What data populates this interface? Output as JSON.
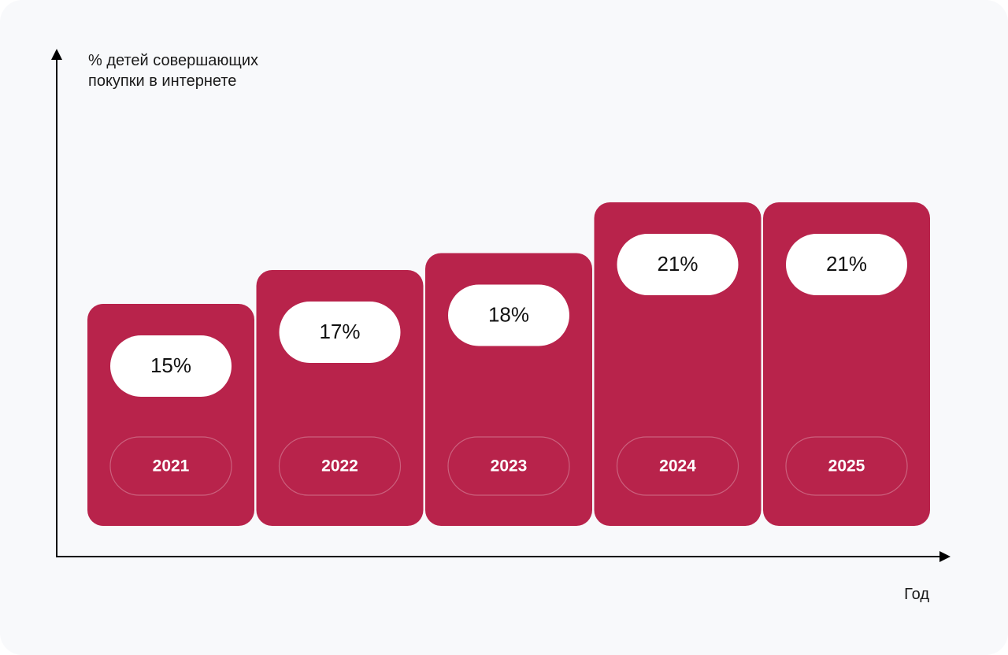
{
  "chart_data": {
    "type": "bar",
    "ylabel": "% детей совершающих\nпокупки в интернете",
    "xlabel": "Год",
    "categories": [
      "2021",
      "2022",
      "2023",
      "2024",
      "2025"
    ],
    "values": [
      15,
      17,
      18,
      21,
      21
    ],
    "value_labels": [
      "15%",
      "17%",
      "18%",
      "21%",
      "21%"
    ],
    "bar_color": "#b8234b",
    "label_pill_color": "#ffffff",
    "axis_color": "#000000",
    "grid": false
  }
}
